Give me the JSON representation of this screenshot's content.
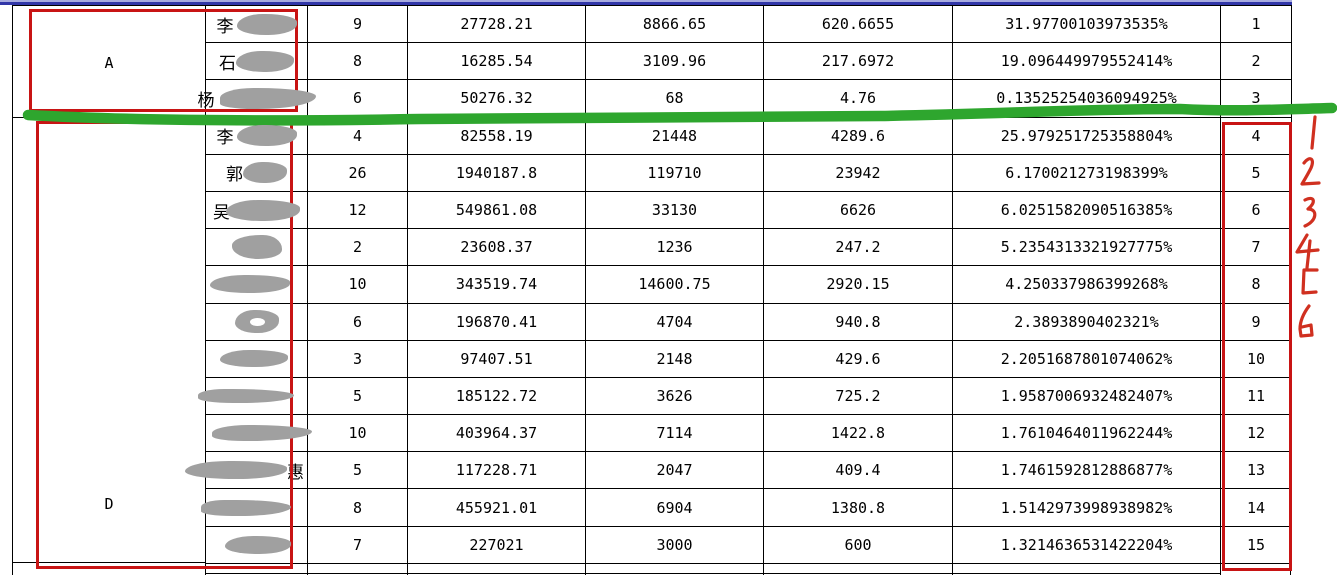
{
  "table": {
    "groups": [
      {
        "label": "A",
        "rows": "1-3"
      },
      {
        "label": "D",
        "rows": "4-15"
      }
    ],
    "rows": [
      {
        "name_fragment": "李",
        "name_redacted": true,
        "count": "9",
        "value1": "27728.21",
        "value2": "8866.65",
        "value3": "620.6655",
        "percentage": "31.97700103973535%",
        "rank": "1"
      },
      {
        "name_fragment": "石",
        "name_redacted": true,
        "count": "8",
        "value1": "16285.54",
        "value2": "3109.96",
        "value3": "217.6972",
        "percentage": "19.096449979552414%",
        "rank": "2"
      },
      {
        "name_fragment": "杨",
        "name_redacted": true,
        "count": "6",
        "value1": "50276.32",
        "value2": "68",
        "value3": "4.76",
        "percentage": "0.13525254036094925%",
        "rank": "3"
      },
      {
        "name_fragment": "李",
        "name_redacted": true,
        "count": "4",
        "value1": "82558.19",
        "value2": "21448",
        "value3": "4289.6",
        "percentage": "25.979251725358804%",
        "rank": "4"
      },
      {
        "name_fragment": "郭",
        "name_redacted": true,
        "count": "26",
        "value1": "1940187.8",
        "value2": "119710",
        "value3": "23942",
        "percentage": "6.170021273198399%",
        "rank": "5"
      },
      {
        "name_fragment": "吴",
        "name_redacted": true,
        "count": "12",
        "value1": "549861.08",
        "value2": "33130",
        "value3": "6626",
        "percentage": "6.0251582090516385%",
        "rank": "6"
      },
      {
        "name_fragment": "",
        "name_redacted": true,
        "count": "2",
        "value1": "23608.37",
        "value2": "1236",
        "value3": "247.2",
        "percentage": "5.2354313321927775%",
        "rank": "7"
      },
      {
        "name_fragment": "",
        "name_redacted": true,
        "count": "10",
        "value1": "343519.74",
        "value2": "14600.75",
        "value3": "2920.15",
        "percentage": "4.250337986399268%",
        "rank": "8"
      },
      {
        "name_fragment": "",
        "name_redacted": true,
        "count": "6",
        "value1": "196870.41",
        "value2": "4704",
        "value3": "940.8",
        "percentage": "2.3893890402321%",
        "rank": "9"
      },
      {
        "name_fragment": "",
        "name_redacted": true,
        "count": "3",
        "value1": "97407.51",
        "value2": "2148",
        "value3": "429.6",
        "percentage": "2.2051687801074062%",
        "rank": "10"
      },
      {
        "name_fragment": "",
        "name_redacted": true,
        "count": "5",
        "value1": "185122.72",
        "value2": "3626",
        "value3": "725.2",
        "percentage": "1.9587006932482407%",
        "rank": "11"
      },
      {
        "name_fragment": "",
        "name_redacted": true,
        "count": "10",
        "value1": "403964.37",
        "value2": "7114",
        "value3": "1422.8",
        "percentage": "1.7610464011962244%",
        "rank": "12"
      },
      {
        "name_fragment": "",
        "name_fragment_after": "惠",
        "name_redacted": true,
        "count": "5",
        "value1": "117228.71",
        "value2": "2047",
        "value3": "409.4",
        "percentage": "1.7461592812886877%",
        "rank": "13"
      },
      {
        "name_fragment": "",
        "name_redacted": true,
        "count": "8",
        "value1": "455921.01",
        "value2": "6904",
        "value3": "1380.8",
        "percentage": "1.5142973998938982%",
        "rank": "14"
      },
      {
        "name_fragment": "",
        "name_redacted": true,
        "count": "7",
        "value1": "227021",
        "value2": "3000",
        "value3": "600",
        "percentage": "1.3214636531422204%",
        "rank": "15"
      }
    ]
  },
  "annotations": {
    "handwritten_digits": [
      "1",
      "2",
      "3",
      "4",
      "5",
      "6"
    ],
    "red_boxes_count": 3,
    "colors": {
      "annotation_red": "#c81414",
      "marker_green": "#2ea62e",
      "top_bar_blue": "#3136a8",
      "redaction_gray": "#a0a0a0",
      "gridline_black": "#000000"
    }
  }
}
